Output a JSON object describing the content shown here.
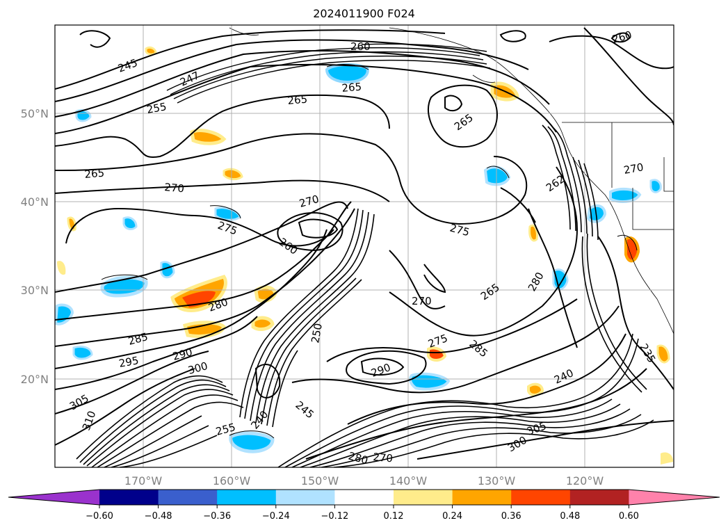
{
  "title": "2024011900 F024",
  "lat_labels": [
    "50°N",
    "40°N",
    "30°N",
    "20°N"
  ],
  "lon_labels": [
    "170°W",
    "160°W",
    "150°W",
    "140°W",
    "130°W",
    "120°W"
  ],
  "colorbar": {
    "ticks": [
      "−0.60",
      "−0.48",
      "−0.36",
      "−0.24",
      "−0.12",
      "0.12",
      "0.24",
      "0.36",
      "0.48",
      "0.60"
    ],
    "colors": [
      "#9a32cd",
      "#00008b",
      "#3a5fcd",
      "#00bfff",
      "#b0e2ff",
      "#ffffff",
      "#ffec8b",
      "#ffa500",
      "#ff4500",
      "#b22222",
      "#ff82ab"
    ]
  },
  "contour_labels": [
    "245",
    "247",
    "255",
    "265",
    "270",
    "275",
    "280",
    "285",
    "290",
    "295",
    "300",
    "305",
    "310",
    "260",
    "265",
    "265",
    "270",
    "275",
    "280",
    "285",
    "290",
    "275",
    "265",
    "270",
    "250",
    "260",
    "240",
    "245",
    "255",
    "240",
    "235",
    "280",
    "270",
    "300",
    "305",
    "260",
    "270",
    "262",
    "265"
  ]
}
